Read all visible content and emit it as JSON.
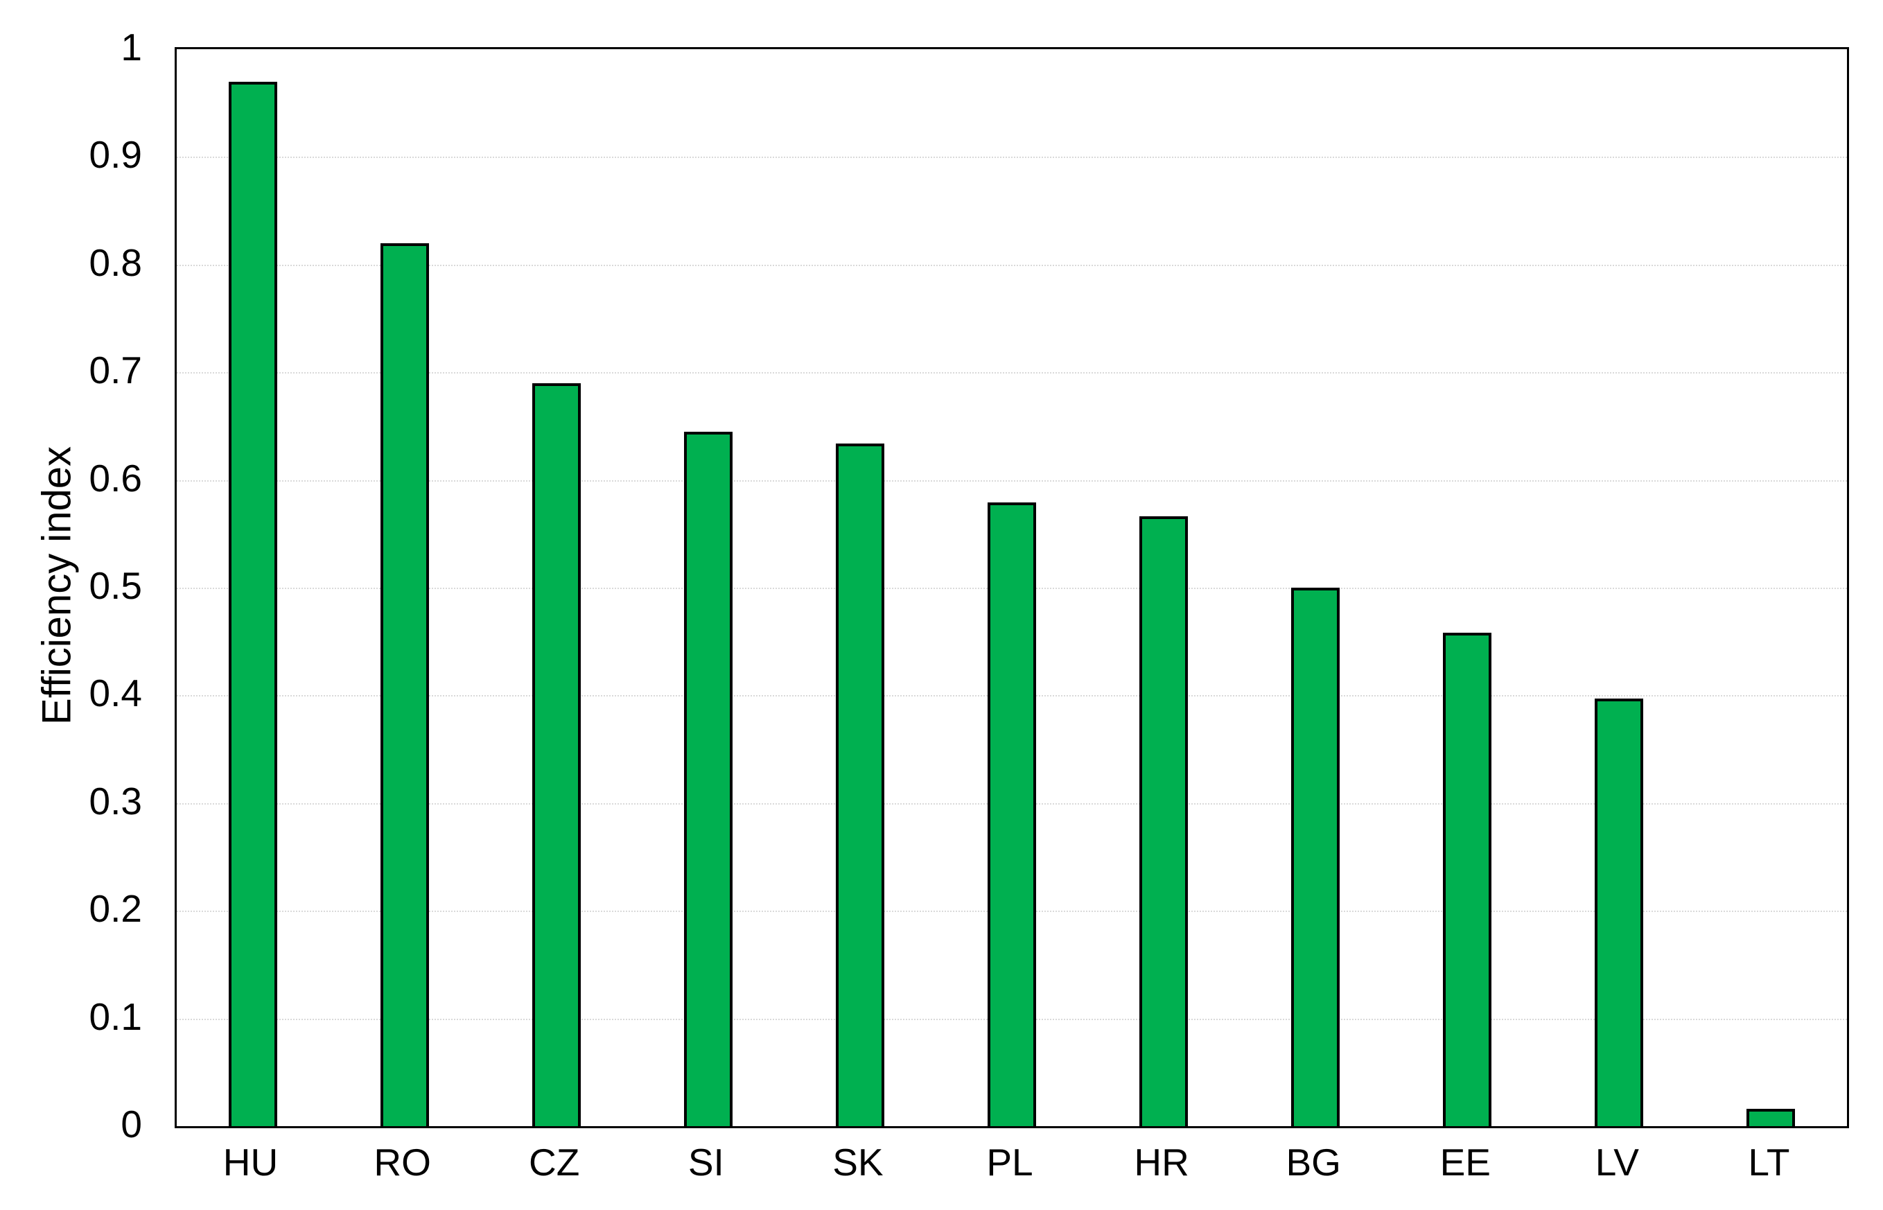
{
  "chart_data": {
    "type": "bar",
    "title": "",
    "xlabel": "",
    "ylabel": "Efficiency index",
    "categories": [
      "HU",
      "RO",
      "CZ",
      "SI",
      "SK",
      "PL",
      "HR",
      "BG",
      "EE",
      "LV",
      "LT"
    ],
    "values": [
      0.97,
      0.82,
      0.69,
      0.645,
      0.634,
      0.579,
      0.566,
      0.5,
      0.458,
      0.397,
      0.016
    ],
    "series_name": "Efficiency index",
    "ylim": [
      0,
      1
    ],
    "ytick_labels": [
      "0",
      "0.1",
      "0.2",
      "0.3",
      "0.4",
      "0.5",
      "0.6",
      "0.7",
      "0.8",
      "0.9",
      "1"
    ],
    "ytick_values": [
      0,
      0.1,
      0.2,
      0.3,
      0.4,
      0.5,
      0.6,
      0.7,
      0.8,
      0.9,
      1
    ],
    "grid": true,
    "gridline_style": "dotted",
    "legend": false,
    "colors": {
      "bar_fill": "#00b050",
      "bar_border": "#000000",
      "gridline": "#d9d9d9",
      "axis_border": "#000000",
      "background": "#ffffff",
      "text": "#000000"
    }
  }
}
